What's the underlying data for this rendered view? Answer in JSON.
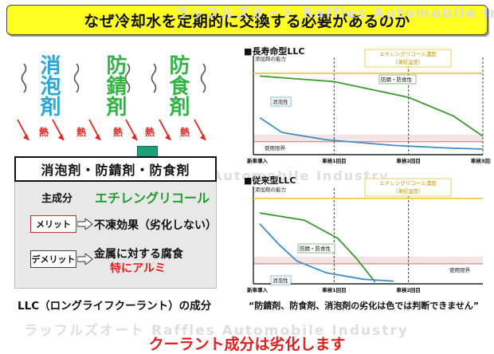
{
  "title": "なぜ冷却水を定期的に交換する必要があるのか",
  "watermarks": {
    "top": "ラッフルズオート Raffles Automobile Industry",
    "mid": "ラッフルズオート Raffles Automobile Industry",
    "bottom": "ラッフルズオート Raffles Automobile Industry"
  },
  "additives": [
    {
      "label": "消泡剤",
      "color": "#2aa7d6"
    },
    {
      "label": "防錆剤",
      "color": "#33b346"
    },
    {
      "label": "防食剤",
      "color": "#33b346"
    }
  ],
  "heat_label": "熱",
  "components_header": "消泡剤・防錆剤・防食剤",
  "main_component": {
    "label": "主成分",
    "value": "エチレングリコール"
  },
  "merit": {
    "tag": "メリット",
    "text": "不凍効果（劣化しない）"
  },
  "demerit": {
    "tag": "デメリット",
    "line1": "金属に対する腐食",
    "line2": "特にアルミ"
  },
  "left_caption": "LLC（ロングライフクーラント）の成分",
  "right_caption": "“防錆剤、防食剤、消泡剤の劣化は色では判断できません”",
  "bottom_text": "クーラント成分は劣化します",
  "chart_data": [
    {
      "type": "line",
      "title": "■長寿命型LLC",
      "ylabel": "添加剤の能力",
      "x_ticks": [
        "新車導入",
        "車検1回目",
        "車検2回目",
        "車検3回目"
      ],
      "x": [
        0,
        1,
        2,
        3
      ],
      "ylim": [
        0,
        100
      ],
      "limit": {
        "label": "使用限界",
        "value": 14
      },
      "reference": {
        "label": "エチレングリコール濃度",
        "sublabel": "（凍結温度）",
        "value": 88
      },
      "series": [
        {
          "name": "防錆・防食性",
          "color": "#3a9a2e",
          "points": [
            [
              0,
              85
            ],
            [
              1,
              79
            ],
            [
              2,
              62
            ],
            [
              2.6,
              42
            ],
            [
              3,
              20
            ]
          ]
        },
        {
          "name": "消泡性",
          "color": "#3d8fc4",
          "points": [
            [
              0,
              40
            ],
            [
              0.3,
              24
            ],
            [
              0.9,
              16
            ],
            [
              1.8,
              10
            ],
            [
              2.6,
              7
            ],
            [
              3,
              6
            ]
          ]
        }
      ]
    },
    {
      "type": "line",
      "title": "■従来型LLC",
      "ylabel": "添加剤の能力",
      "x_ticks": [
        "新車導入",
        "車検1回目",
        "車検2回目"
      ],
      "x": [
        0,
        1,
        2
      ],
      "ylim": [
        0,
        100
      ],
      "limit": {
        "label": "使用限界",
        "value": 22
      },
      "reference": {
        "label": "エチレングリコール濃度",
        "sublabel": "（凍結温度）",
        "value": 94
      },
      "series": [
        {
          "name": "防錆・防食性",
          "color": "#3a9a2e",
          "points": [
            [
              0,
              78
            ],
            [
              0.6,
              70
            ],
            [
              1.05,
              50
            ],
            [
              1.3,
              28
            ],
            [
              1.55,
              2
            ]
          ]
        },
        {
          "name": "消泡性",
          "color": "#3d8fc4",
          "points": [
            [
              0,
              66
            ],
            [
              0.25,
              44
            ],
            [
              0.5,
              25
            ],
            [
              0.9,
              12
            ],
            [
              1.4,
              5
            ],
            [
              1.8,
              3
            ]
          ]
        }
      ]
    }
  ]
}
